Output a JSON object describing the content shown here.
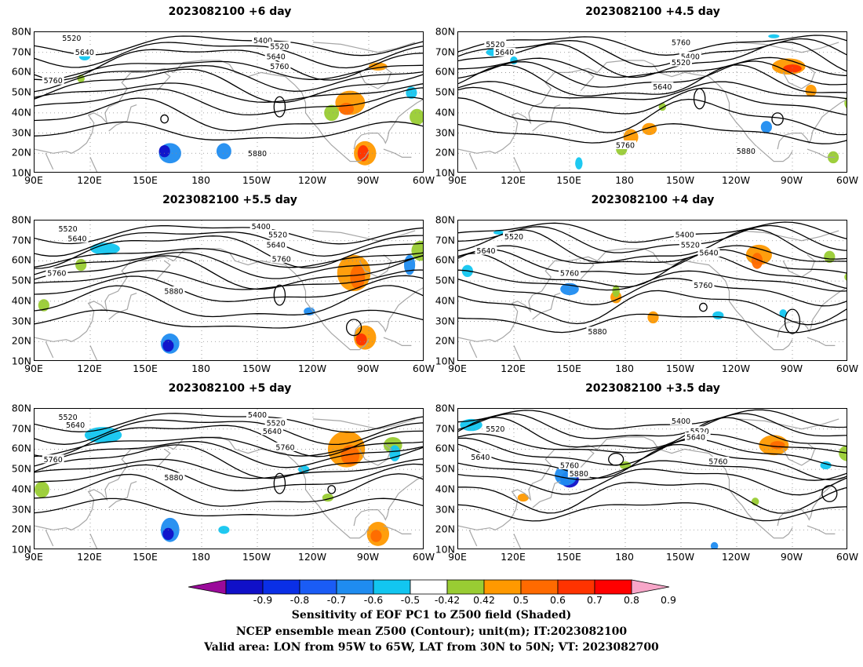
{
  "panels": [
    {
      "title": "2023082100 +6 day"
    },
    {
      "title": "2023082100 +4.5 day"
    },
    {
      "title": "2023082100 +5.5 day"
    },
    {
      "title": "2023082100 +4 day"
    },
    {
      "title": "2023082100 +5 day"
    },
    {
      "title": "2023082100 +3.5 day"
    }
  ],
  "axes": {
    "lat_labels": [
      "80N",
      "70N",
      "60N",
      "50N",
      "40N",
      "30N",
      "20N",
      "10N"
    ],
    "lon_labels": [
      "90E",
      "120E",
      "150E",
      "180",
      "150W",
      "120W",
      "90W",
      "60W"
    ]
  },
  "contour_labels": [
    "5400",
    "5520",
    "5640",
    "5760",
    "5880"
  ],
  "colorbar": {
    "labels": [
      "-0.9",
      "-0.8",
      "-0.7",
      "-0.6",
      "-0.5",
      "-0.42",
      "0.42",
      "0.5",
      "0.6",
      "0.7",
      "0.8",
      "0.9"
    ],
    "colors": [
      "#9a0a9a",
      "#1010c8",
      "#0a2fe6",
      "#1a5cf5",
      "#1f8cf0",
      "#12c6f0",
      "#ffffff",
      "#99cc33",
      "#ff9900",
      "#ff6a00",
      "#ff3300",
      "#ff0000",
      "#f7a6c8"
    ]
  },
  "caption": {
    "line1": "Sensitivity of EOF PC1 to Z500 field (Shaded)",
    "line2": "NCEP ensemble mean Z500 (Contour); unit(m); IT:2023082100",
    "line3": "Valid area: LON from 95W to 65W, LAT from 30N to 50N; VT: 2023082700"
  },
  "colors": {
    "contour": "#000000",
    "coastline": "#a6a6a6",
    "grid": "#8a8a8a"
  }
}
